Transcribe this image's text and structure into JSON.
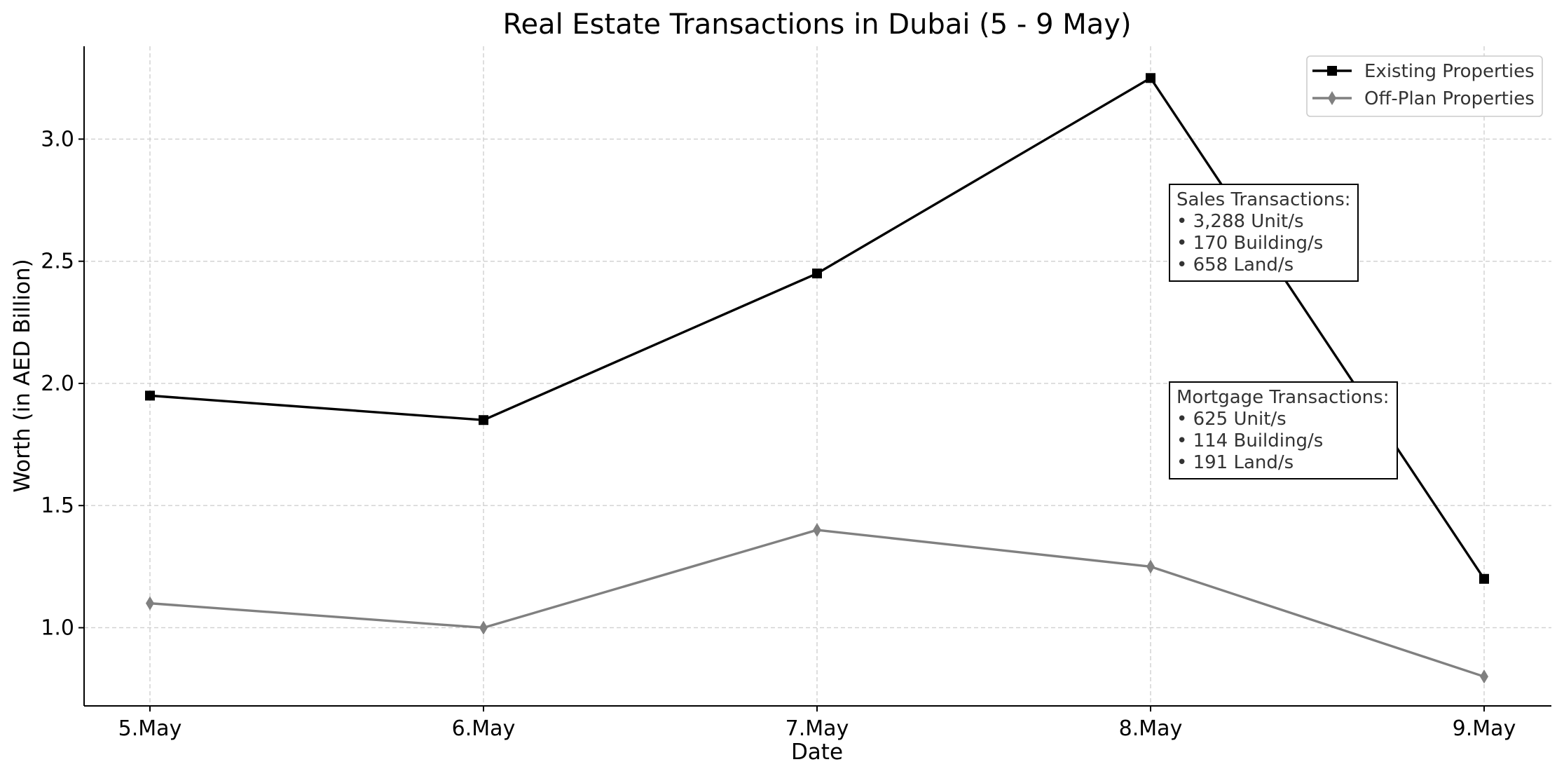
{
  "chart_data": {
    "type": "line",
    "title": "Real Estate Transactions in Dubai (5 - 9 May)",
    "xlabel": "Date",
    "ylabel": "Worth (in AED Billion)",
    "categories": [
      "5.May",
      "6.May",
      "7.May",
      "8.May",
      "9.May"
    ],
    "ylim": [
      0.68,
      3.38
    ],
    "yticks": [
      1.0,
      1.5,
      2.0,
      2.5,
      3.0
    ],
    "ytick_labels": [
      "1.0",
      "1.5",
      "2.0",
      "2.5",
      "3.0"
    ],
    "grid": true,
    "legend_position": "top-right",
    "series": [
      {
        "name": "Existing Properties",
        "values": [
          1.95,
          1.85,
          2.45,
          3.25,
          1.2
        ],
        "color": "#000000",
        "marker": "square"
      },
      {
        "name": "Off-Plan Properties",
        "values": [
          1.1,
          1.0,
          1.4,
          1.25,
          0.8
        ],
        "color": "#808080",
        "marker": "diamond"
      }
    ],
    "annotations": [
      {
        "heading": "Sales Transactions:",
        "lines": [
          "• 3,288 Unit/s",
          "• 170 Building/s",
          "• 658 Land/s"
        ]
      },
      {
        "heading": "Mortgage Transactions:",
        "lines": [
          "• 625 Unit/s",
          "• 114 Building/s",
          "• 191 Land/s"
        ]
      }
    ]
  }
}
